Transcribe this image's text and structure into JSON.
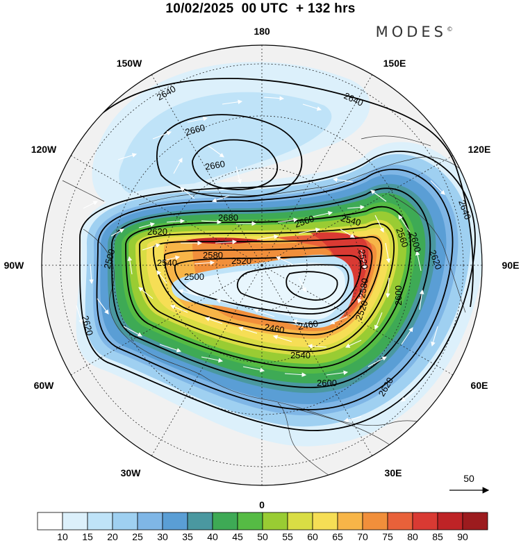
{
  "header": {
    "title": "10/02/2025  00 UTC  + 132 hrs",
    "brand": "MODES",
    "brand_mark": "©"
  },
  "longitude_labels": {
    "lon_180": "180",
    "lon_150e": "150E",
    "lon_120e": "120E",
    "lon_90e": "90E",
    "lon_60e": "60E",
    "lon_30e": "30E",
    "lon_0": "0",
    "lon_30w": "30W",
    "lon_60w": "60W",
    "lon_90w": "90W",
    "lon_120w": "120W",
    "lon_150w": "150W"
  },
  "vector_reference": {
    "value": "50"
  },
  "contour_labels": [
    "2640",
    "2640",
    "2660",
    "2680",
    "2620",
    "2660",
    "2640",
    "2560",
    "2540",
    "2580",
    "2540",
    "2500",
    "2520",
    "2500",
    "2560",
    "2520",
    "2600",
    "2580",
    "2600",
    "2620",
    "2460",
    "2460",
    "2520",
    "2540",
    "2600",
    "2620",
    "2620"
  ],
  "colorbar": {
    "labels": [
      "10",
      "15",
      "20",
      "25",
      "30",
      "35",
      "40",
      "45",
      "50",
      "55",
      "60",
      "65",
      "70",
      "75",
      "80",
      "85",
      "90"
    ],
    "colors": [
      "#ffffff",
      "#dcf0fb",
      "#bfe3f8",
      "#9fd0f1",
      "#7fb6e6",
      "#5a9ed5",
      "#4a98a0",
      "#3eaa55",
      "#55bb44",
      "#99cc33",
      "#d9dd44",
      "#f6de55",
      "#f7b548",
      "#f18f3b",
      "#e8613a",
      "#d93a33",
      "#be2326",
      "#9c1b1e"
    ]
  }
}
